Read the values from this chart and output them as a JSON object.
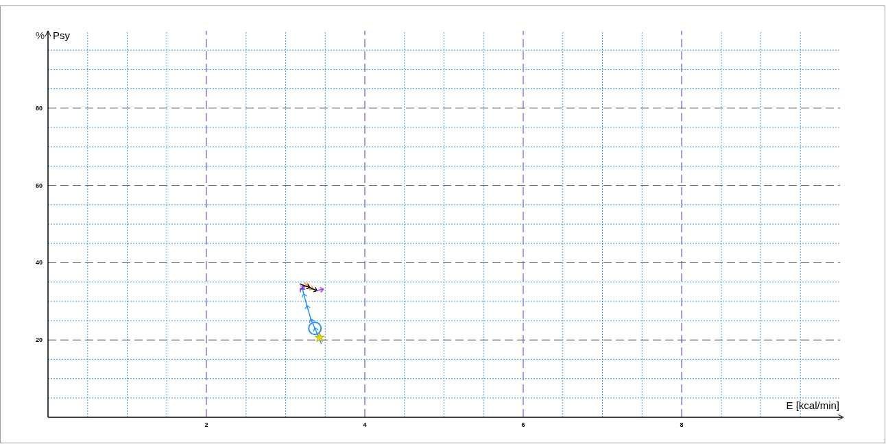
{
  "chart_data": {
    "type": "line",
    "xlabel": "E [kcal/min]",
    "ylabel": "Psy",
    "annotations": [
      "%"
    ],
    "xlim": [
      0,
      10
    ],
    "ylim": [
      0,
      100
    ],
    "xticks": [
      {
        "value": 0.5,
        "label": null
      },
      {
        "value": 1,
        "label": null
      },
      {
        "value": 1.5,
        "label": null
      },
      2,
      {
        "value": 2.5,
        "label": null
      },
      {
        "value": 3,
        "label": null
      },
      {
        "value": 3.5,
        "label": null
      },
      4,
      {
        "value": 4.5,
        "label": null
      },
      {
        "value": 5,
        "label": null
      },
      {
        "value": 5.5,
        "label": null
      },
      6,
      {
        "value": 6.5,
        "label": null
      },
      {
        "value": 7,
        "label": null
      },
      {
        "value": 7.5,
        "label": null
      },
      8,
      {
        "value": 8.5,
        "label": null
      },
      {
        "value": 9,
        "label": null
      },
      {
        "value": 9.5,
        "label": null
      }
    ],
    "yticks": [
      {
        "value": 5,
        "label": null
      },
      {
        "value": 10,
        "label": null
      },
      {
        "value": 15,
        "label": null
      },
      20,
      {
        "value": 25,
        "label": null
      },
      {
        "value": 30,
        "label": null
      },
      {
        "value": 35,
        "label": null
      },
      40,
      {
        "value": 45,
        "label": null
      },
      {
        "value": 50,
        "label": null
      },
      {
        "value": 55,
        "label": null
      },
      60,
      {
        "value": 65,
        "label": null
      },
      {
        "value": 70,
        "label": null
      },
      {
        "value": 75,
        "label": null
      },
      80,
      {
        "value": 85,
        "label": null
      },
      {
        "value": 90,
        "label": null
      },
      {
        "value": 95,
        "label": null
      }
    ],
    "grid": true,
    "marker": "none",
    "line_style": "solid",
    "series": [
      {
        "color": "#1e90ff",
        "x": [
          3.45,
          3.37,
          3.32,
          3.27,
          3.23,
          3.21
        ],
        "values": [
          19.1,
          23.0,
          25.3,
          28.8,
          31.8,
          33.5
        ]
      },
      {
        "color": "#7b2be2",
        "x": [
          3.21,
          3.19,
          3.23
        ],
        "values": [
          33.5,
          33.2,
          33.9
        ]
      },
      {
        "color": "#ff8c00",
        "x": [
          3.24,
          3.28,
          3.34
        ],
        "values": [
          34.8,
          33.9,
          33.2
        ]
      },
      {
        "color": "#000000",
        "x": [
          3.18,
          3.3,
          3.39
        ],
        "values": [
          34.5,
          33.6,
          32.8
        ]
      },
      {
        "color": "#9b30ff",
        "x": [
          3.39,
          3.47
        ],
        "values": [
          32.8,
          33.1
        ]
      },
      {
        "type": "scatter",
        "marker": "circle",
        "color": "#1e90ff",
        "x": [
          3.37
        ],
        "values": [
          23.0
        ]
      },
      {
        "type": "scatter",
        "marker": "star",
        "color": "#e6d800",
        "x": [
          3.43
        ],
        "values": [
          20.6
        ]
      }
    ]
  }
}
